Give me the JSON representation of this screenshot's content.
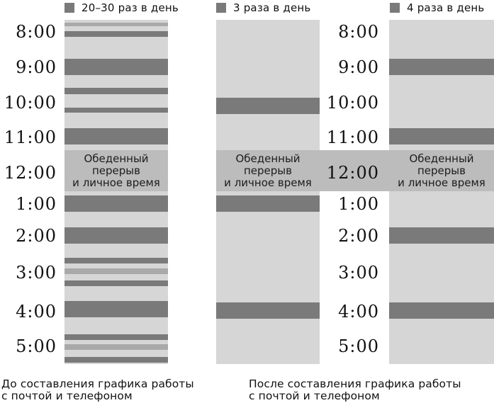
{
  "legend": [
    {
      "label": "20–30 раз в день",
      "color": "#7a7a7a"
    },
    {
      "label": "3 раза в день",
      "color": "#7a7a7a"
    },
    {
      "label": "4 раза в день",
      "color": "#7a7a7a"
    }
  ],
  "times": [
    "8:00",
    "9:00",
    "10:00",
    "11:00",
    "12:00",
    "1:00",
    "2:00",
    "3:00",
    "4:00",
    "5:00"
  ],
  "lunch_label": [
    "Обеденный",
    "перерыв",
    "и личное время"
  ],
  "captions": {
    "before": [
      "До составления графика работы",
      "с почтой и телефоном"
    ],
    "after": [
      "После составления графика работы",
      "с почтой и телефоном"
    ]
  },
  "colors": {
    "column_bg": "#d6d6d6",
    "dark_band": "#7a7a7a",
    "light_band": "#a9a9a9",
    "lunch_bg": "#bcbcbc"
  }
}
